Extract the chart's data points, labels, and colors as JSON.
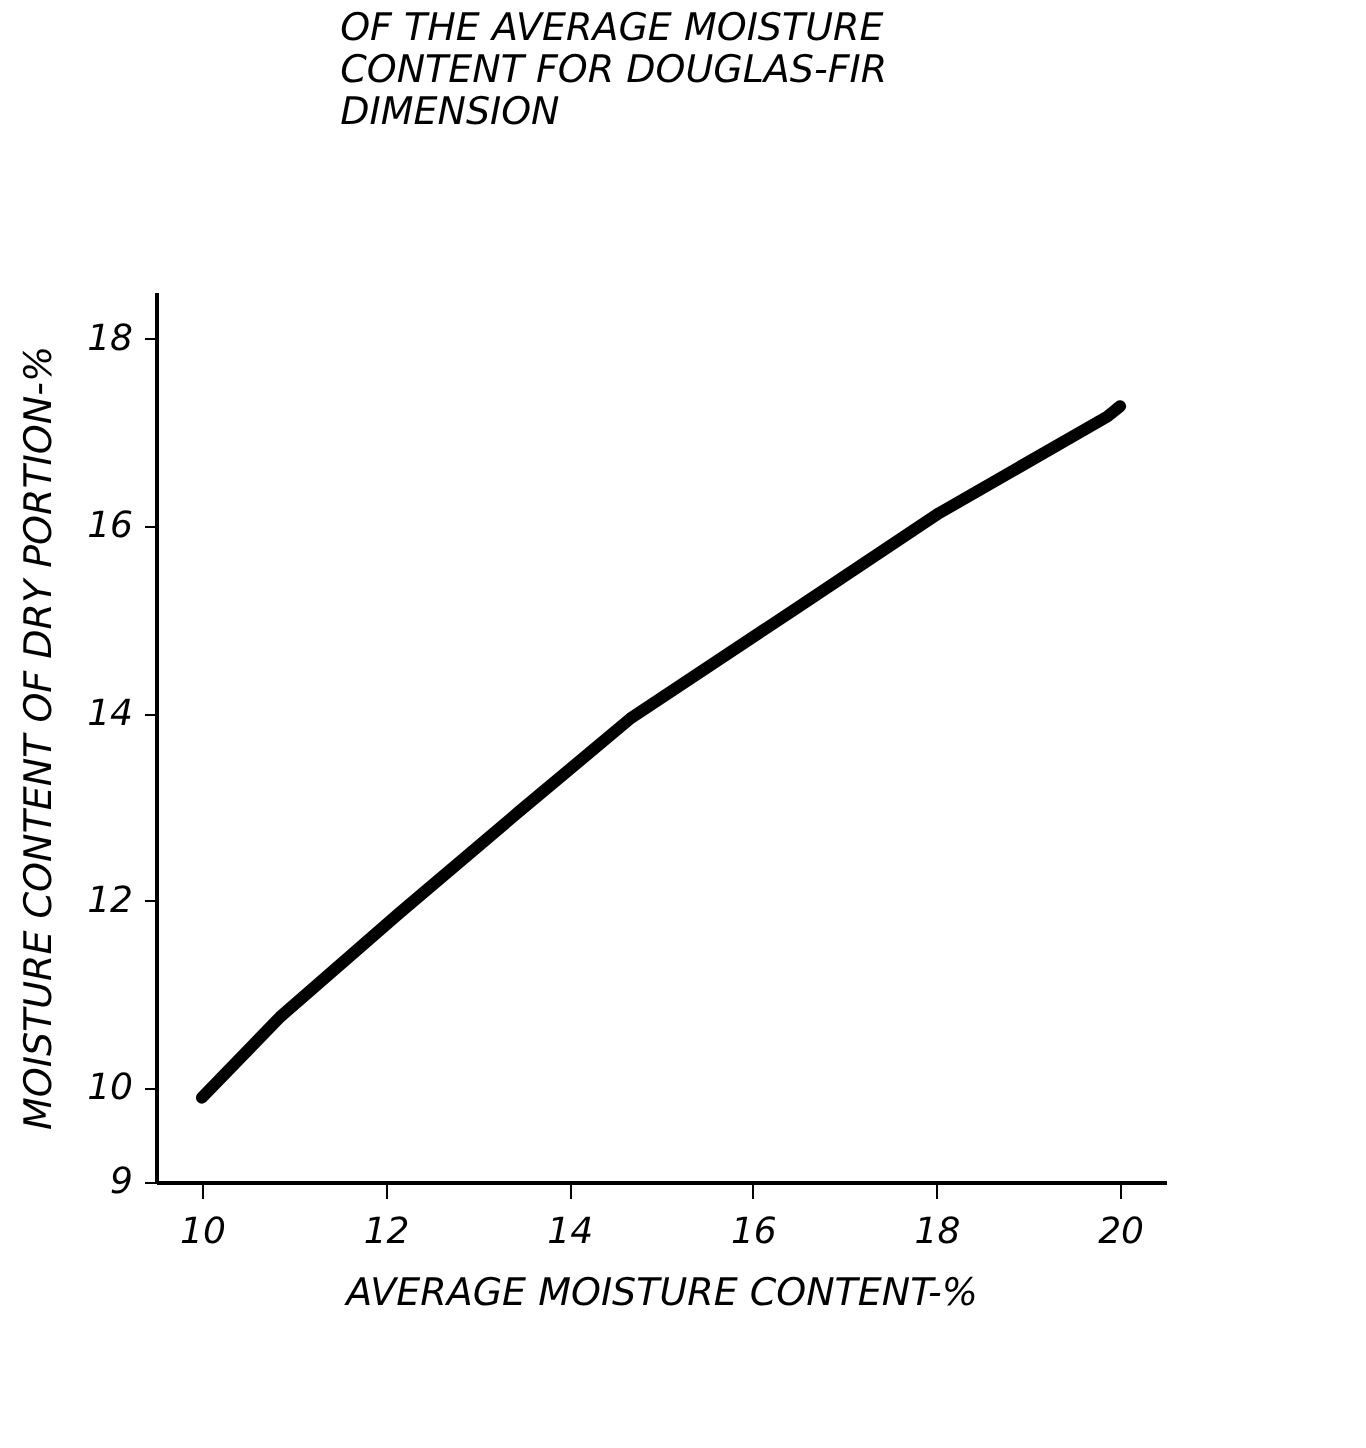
{
  "chart_data": {
    "type": "line",
    "title": "OF THE AVERAGE MOISTURE\nCONTENT FOR DOUGLAS-FIR\nDIMENSION",
    "xlabel": "AVERAGE MOISTURE CONTENT-%",
    "ylabel": "MOISTURE CONTENT OF DRY PORTION-%",
    "x": [
      10.0,
      10.85,
      12.15,
      13.45,
      14.67,
      16.5,
      18.03,
      19.86,
      20.0
    ],
    "series": [
      {
        "color": "#000000",
        "values": [
          9.9,
          10.76,
          11.87,
          12.95,
          13.95,
          15.14,
          16.14,
          17.17,
          17.28
        ]
      }
    ],
    "xlim": [
      9.5,
      20.5
    ],
    "xticks": [
      10,
      12,
      14,
      16,
      18,
      20
    ],
    "ylim": [
      9,
      18.5
    ],
    "yticks": [
      9,
      10,
      12,
      14,
      16,
      18
    ],
    "grid": false,
    "legend": false,
    "marker": "none",
    "line_style": "solid"
  }
}
